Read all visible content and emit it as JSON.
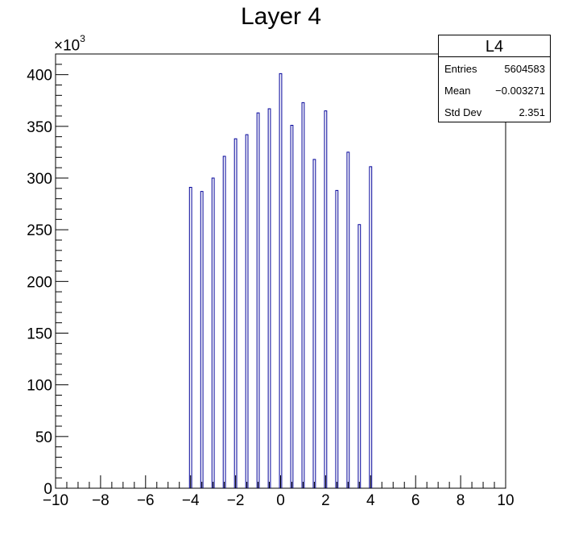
{
  "chart_data": {
    "type": "bar",
    "title": "Layer 4",
    "xlabel": "",
    "ylabel": "",
    "xlim": [
      -10,
      10
    ],
    "ylim": [
      0,
      420000
    ],
    "y_multiplier_label": "×10",
    "y_multiplier_exp": "3",
    "x_ticks": [
      {
        "value": -10,
        "label": "−10"
      },
      {
        "value": -8,
        "label": "−8"
      },
      {
        "value": -6,
        "label": "−6"
      },
      {
        "value": -4,
        "label": "−4"
      },
      {
        "value": -2,
        "label": "−2"
      },
      {
        "value": 0,
        "label": "0"
      },
      {
        "value": 2,
        "label": "2"
      },
      {
        "value": 4,
        "label": "4"
      },
      {
        "value": 6,
        "label": "6"
      },
      {
        "value": 8,
        "label": "8"
      },
      {
        "value": 10,
        "label": "10"
      }
    ],
    "y_ticks": [
      {
        "value": 0,
        "label": "0"
      },
      {
        "value": 50000,
        "label": "50"
      },
      {
        "value": 100000,
        "label": "100"
      },
      {
        "value": 150000,
        "label": "150"
      },
      {
        "value": 200000,
        "label": "200"
      },
      {
        "value": 250000,
        "label": "250"
      },
      {
        "value": 300000,
        "label": "300"
      },
      {
        "value": 350000,
        "label": "350"
      },
      {
        "value": 400000,
        "label": "400"
      }
    ],
    "bin_width": 0.1,
    "bins": [
      {
        "x": -4.0,
        "y": 291000
      },
      {
        "x": -3.5,
        "y": 287000
      },
      {
        "x": -3.0,
        "y": 300000
      },
      {
        "x": -2.5,
        "y": 321000
      },
      {
        "x": -2.0,
        "y": 338000
      },
      {
        "x": -1.5,
        "y": 342000
      },
      {
        "x": -1.0,
        "y": 363000
      },
      {
        "x": -0.5,
        "y": 367000
      },
      {
        "x": 0.0,
        "y": 401000
      },
      {
        "x": 0.5,
        "y": 351000
      },
      {
        "x": 1.0,
        "y": 373000
      },
      {
        "x": 1.5,
        "y": 318000
      },
      {
        "x": 2.0,
        "y": 365000
      },
      {
        "x": 2.5,
        "y": 288000
      },
      {
        "x": 3.0,
        "y": 325000
      },
      {
        "x": 3.5,
        "y": 255000
      },
      {
        "x": 4.0,
        "y": 311000
      }
    ],
    "colors": {
      "bar_line": "#000099",
      "axis": "#000000"
    },
    "grid": false
  },
  "stats": {
    "name": "L4",
    "rows": [
      {
        "label": "Entries",
        "value": "5604583"
      },
      {
        "label": "Mean",
        "value": "−0.003271"
      },
      {
        "label": "Std Dev",
        "value": "2.351"
      }
    ]
  }
}
